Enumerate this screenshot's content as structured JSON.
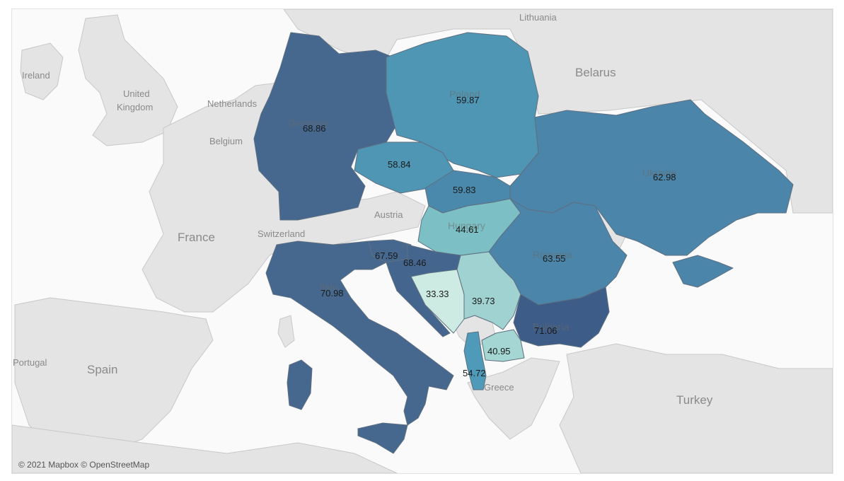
{
  "map": {
    "attribution": "© 2021 Mapbox © OpenStreetMap",
    "colors": {
      "sea": "#fafafa",
      "land": "#e6e6e6",
      "border": "#9a9a9a",
      "scale_low": "#cfece6",
      "scale_mid": "#4f98b5",
      "scale_high": "#3c5d8a"
    },
    "background_labels": [
      "Lithuania",
      "Belarus",
      "Ireland",
      "United",
      "Kingdom",
      "Netherlands",
      "Belgium",
      "France",
      "Switzerland",
      "Austria",
      "Portugal",
      "Spain",
      "Greece",
      "Turkey"
    ],
    "regions": [
      {
        "country": "Germany",
        "value": "68.86"
      },
      {
        "country": "Poland",
        "value": "59.87"
      },
      {
        "country": "Czechia",
        "value": "58.84"
      },
      {
        "country": "Slovakia",
        "value": "59.83"
      },
      {
        "country": "Ukraine",
        "value": "62.98"
      },
      {
        "country": "Hungary",
        "value": "44.61"
      },
      {
        "country": "Romania",
        "value": "63.55"
      },
      {
        "country": "Slovenia",
        "value": "67.59"
      },
      {
        "country": "Croatia",
        "value": "68.46"
      },
      {
        "country": "Italy",
        "value": "70.98"
      },
      {
        "country": "Bosnia and Herzegovina",
        "value": "33.33"
      },
      {
        "country": "Serbia",
        "value": "39.73"
      },
      {
        "country": "Bulgaria",
        "value": "71.06"
      },
      {
        "country": "North Macedonia",
        "value": "40.95"
      },
      {
        "country": "Albania",
        "value": "54.72"
      }
    ]
  }
}
